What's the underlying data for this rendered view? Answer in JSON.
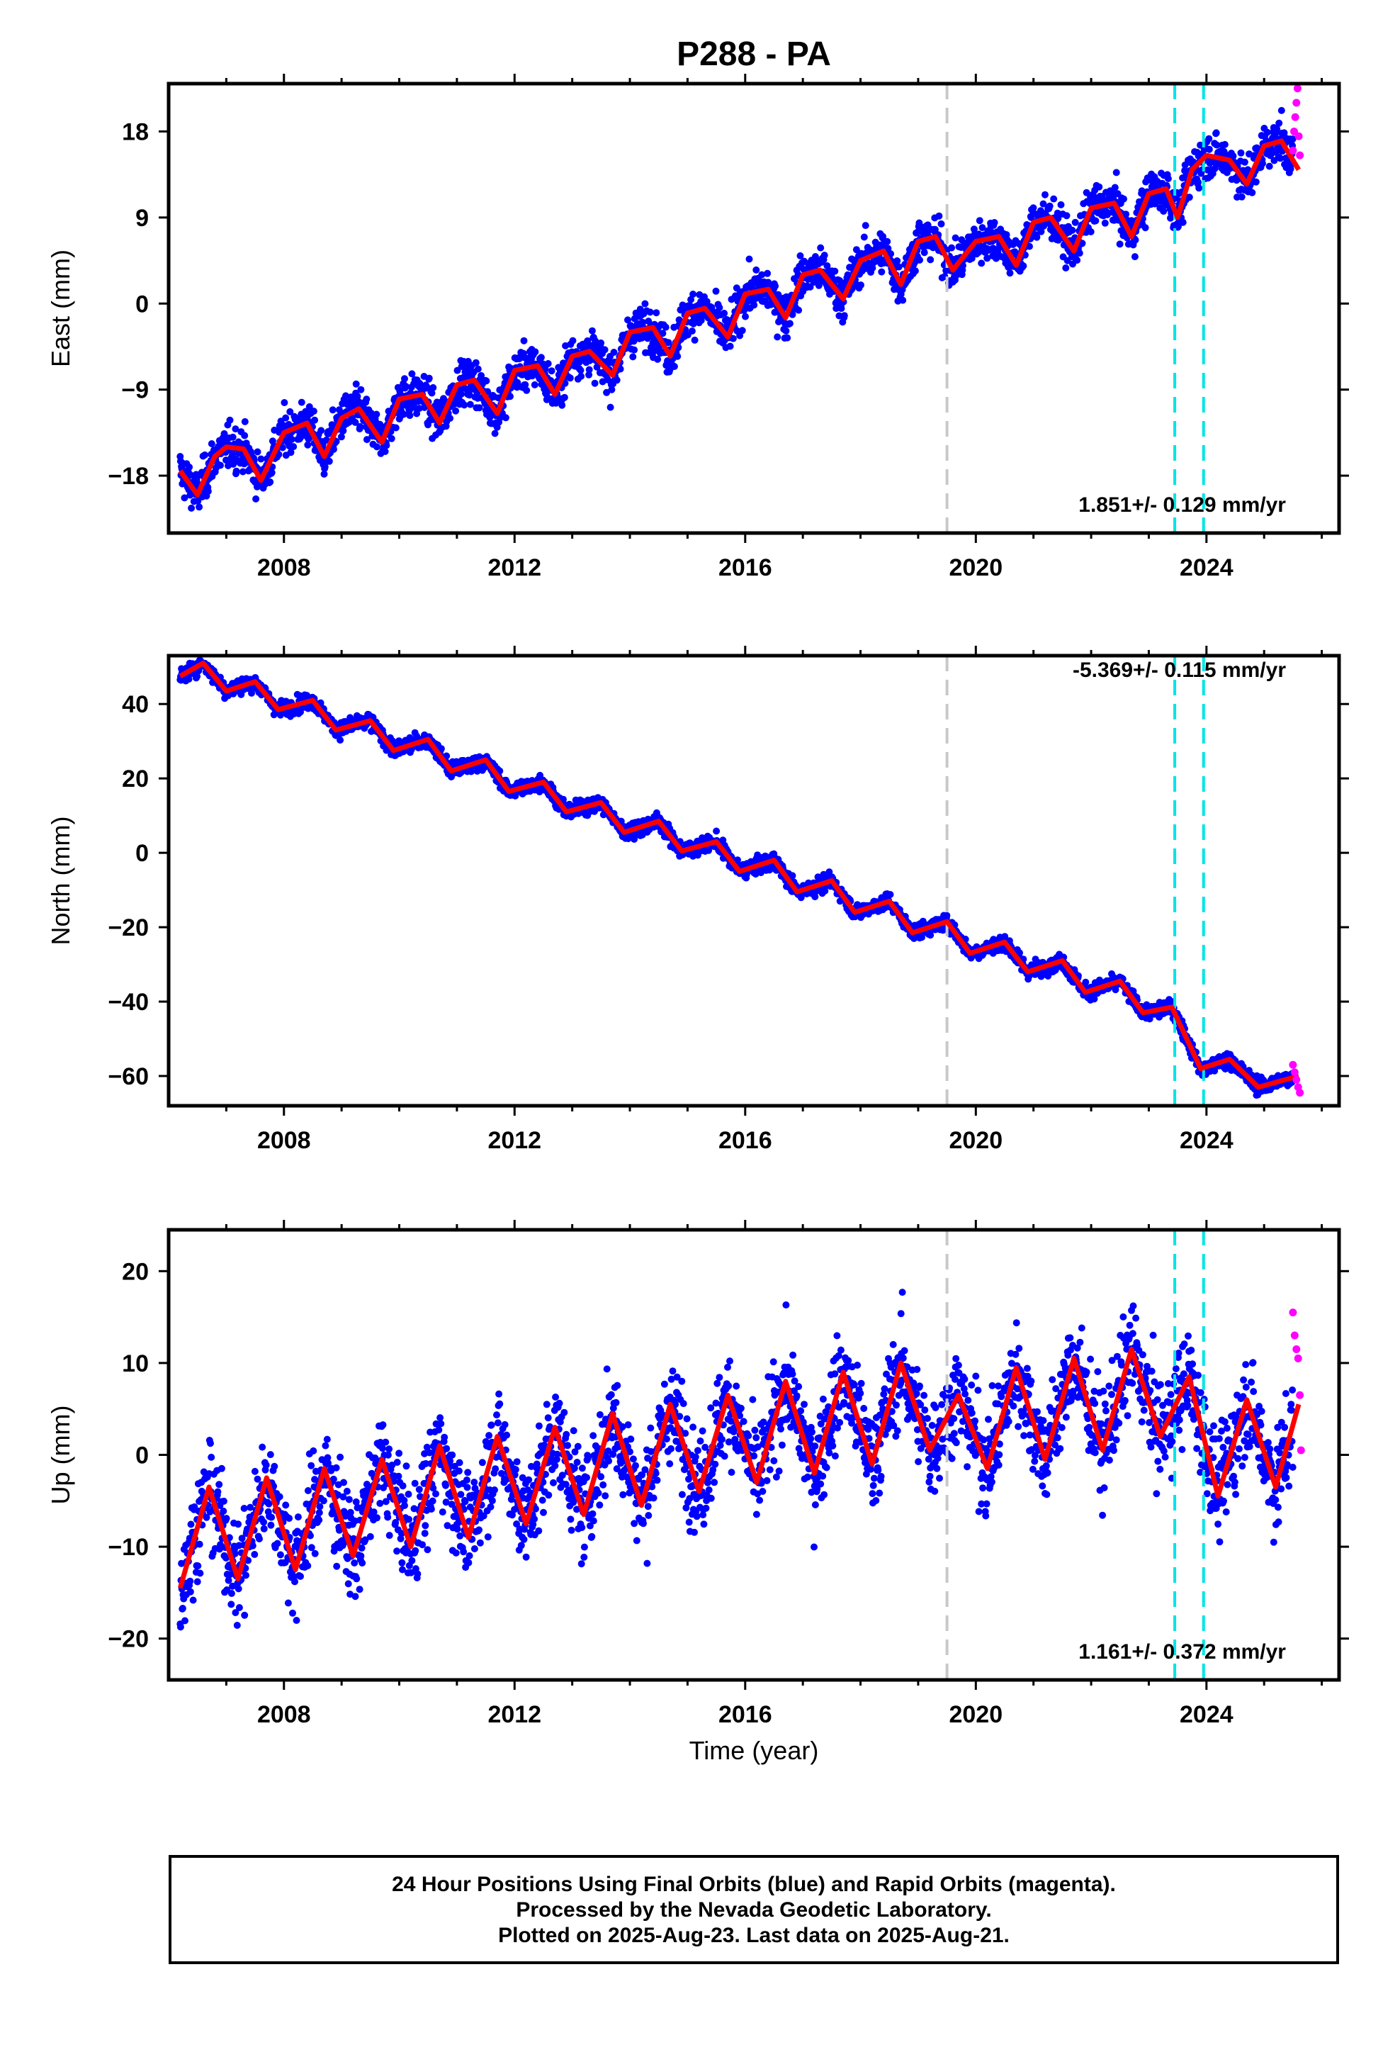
{
  "colors": {
    "final_orbits": "#0000ff",
    "rapid_orbits": "#ff00ff",
    "model_fit": "#ff0000",
    "equipment_change": "#c8c8c8",
    "event_marker": "#00e5e5"
  },
  "footer": {
    "line1": "24 Hour Positions Using Final Orbits (blue) and Rapid Orbits (magenta).",
    "line2": "Processed by the Nevada Geodetic Laboratory.",
    "line3": "Plotted on 2025-Aug-23. Last data on 2025-Aug-21."
  },
  "chart_data": [
    {
      "type": "scatter",
      "title": "P288 - PA",
      "xlabel": "",
      "ylabel": "East (mm)",
      "xlim": [
        2006.0,
        2026.3
      ],
      "ylim": [
        -24,
        23
      ],
      "x_ticks": [
        2008,
        2012,
        2016,
        2020,
        2024
      ],
      "y_ticks": [
        -18,
        -9,
        0,
        9,
        18
      ],
      "y_tick_labels": [
        "−18",
        "−9",
        "0",
        "9",
        "18"
      ],
      "rate_label": "1.851+/- 0.129 mm/yr",
      "vertical_lines": [
        {
          "x": 2019.5,
          "kind": "equipment_change"
        },
        {
          "x": 2023.45,
          "kind": "event_marker"
        },
        {
          "x": 2023.95,
          "kind": "event_marker"
        }
      ],
      "series": [
        {
          "kind": "model_fit",
          "x": [
            2006.2,
            2006.5,
            2006.8,
            2007.0,
            2007.3,
            2007.6,
            2008.0,
            2008.4,
            2008.7,
            2009.0,
            2009.3,
            2009.7,
            2010.0,
            2010.4,
            2010.7,
            2011.0,
            2011.3,
            2011.7,
            2012.0,
            2012.4,
            2012.7,
            2013.0,
            2013.3,
            2013.7,
            2014.0,
            2014.4,
            2014.7,
            2015.0,
            2015.3,
            2015.7,
            2016.0,
            2016.4,
            2016.7,
            2017.0,
            2017.3,
            2017.7,
            2018.0,
            2018.4,
            2018.7,
            2019.0,
            2019.3,
            2019.6,
            2020.0,
            2020.4,
            2020.7,
            2021.0,
            2021.3,
            2021.7,
            2022.0,
            2022.4,
            2022.7,
            2023.0,
            2023.3,
            2023.5,
            2023.75,
            2024.0,
            2024.4,
            2024.7,
            2025.0,
            2025.3,
            2025.6
          ],
          "y": [
            -17.5,
            -20.0,
            -16.0,
            -15.0,
            -15.2,
            -18.5,
            -13.5,
            -12.5,
            -16.0,
            -12.0,
            -11.0,
            -14.5,
            -10.0,
            -9.5,
            -12.5,
            -8.5,
            -8.0,
            -11.5,
            -7.0,
            -6.5,
            -9.5,
            -5.5,
            -5.0,
            -7.5,
            -3.0,
            -2.5,
            -5.5,
            -1.0,
            -0.5,
            -3.5,
            1.0,
            1.5,
            -1.5,
            3.0,
            3.5,
            0.5,
            4.5,
            5.5,
            2.0,
            6.5,
            7.0,
            3.5,
            6.5,
            7.0,
            4.0,
            8.5,
            9.0,
            5.5,
            10.0,
            10.5,
            7.0,
            11.5,
            12.0,
            9.0,
            14.0,
            15.5,
            15.0,
            12.5,
            16.5,
            17.0,
            14.0
          ]
        },
        {
          "kind": "rapid_orbits",
          "x": [
            2025.5,
            2025.52,
            2025.54,
            2025.56,
            2025.58,
            2025.6,
            2025.62
          ],
          "y": [
            16.0,
            18.0,
            19.5,
            21.0,
            22.5,
            17.5,
            15.5
          ]
        }
      ]
    },
    {
      "type": "scatter",
      "title": "",
      "xlabel": "",
      "ylabel": "North (mm)",
      "xlim": [
        2006.0,
        2026.3
      ],
      "ylim": [
        -68,
        53
      ],
      "x_ticks": [
        2008,
        2012,
        2016,
        2020,
        2024
      ],
      "y_ticks": [
        -60,
        -40,
        -20,
        0,
        20,
        40
      ],
      "y_tick_labels": [
        "−60",
        "−40",
        "−20",
        "0",
        "20",
        "40"
      ],
      "rate_label": "-5.369+/- 0.115 mm/yr",
      "vertical_lines": [
        {
          "x": 2019.5,
          "kind": "equipment_change"
        },
        {
          "x": 2023.45,
          "kind": "event_marker"
        },
        {
          "x": 2023.95,
          "kind": "event_marker"
        }
      ],
      "series": [
        {
          "kind": "model_fit",
          "x": [
            2006.2,
            2006.6,
            2007.0,
            2007.5,
            2007.9,
            2008.5,
            2008.9,
            2009.5,
            2009.9,
            2010.5,
            2010.9,
            2011.5,
            2011.9,
            2012.5,
            2012.9,
            2013.5,
            2013.9,
            2014.5,
            2014.9,
            2015.5,
            2015.9,
            2016.5,
            2016.9,
            2017.5,
            2017.9,
            2018.5,
            2018.9,
            2019.5,
            2019.9,
            2020.5,
            2020.9,
            2021.5,
            2021.9,
            2022.5,
            2022.9,
            2023.4,
            2023.9,
            2024.4,
            2024.9,
            2025.6
          ],
          "y": [
            47.5,
            51.0,
            43.5,
            46.0,
            38.5,
            41.0,
            33.0,
            35.5,
            27.5,
            30.5,
            22.0,
            25.0,
            16.5,
            19.0,
            11.0,
            13.5,
            5.5,
            8.5,
            0.5,
            3.0,
            -5.0,
            -2.0,
            -10.5,
            -7.5,
            -16.0,
            -13.0,
            -21.5,
            -18.5,
            -27.0,
            -24.0,
            -32.0,
            -29.0,
            -37.5,
            -34.5,
            -43.0,
            -41.5,
            -58.0,
            -55.5,
            -63.0,
            -60.0
          ]
        },
        {
          "kind": "rapid_orbits",
          "x": [
            2025.5,
            2025.53,
            2025.56,
            2025.59,
            2025.62
          ],
          "y": [
            -57.0,
            -59.0,
            -61.0,
            -63.0,
            -64.5
          ]
        }
      ]
    },
    {
      "type": "scatter",
      "title": "",
      "xlabel": "Time (year)",
      "ylabel": "Up (mm)",
      "xlim": [
        2006.0,
        2026.3
      ],
      "ylim": [
        -24.5,
        24.5
      ],
      "x_ticks": [
        2008,
        2012,
        2016,
        2020,
        2024
      ],
      "y_ticks": [
        -20,
        -10,
        0,
        10,
        20
      ],
      "y_tick_labels": [
        "−20",
        "−10",
        "0",
        "10",
        "20"
      ],
      "rate_label": "1.161+/- 0.372 mm/yr",
      "vertical_lines": [
        {
          "x": 2019.5,
          "kind": "equipment_change"
        },
        {
          "x": 2023.45,
          "kind": "event_marker"
        },
        {
          "x": 2023.95,
          "kind": "event_marker"
        }
      ],
      "series": [
        {
          "kind": "model_fit",
          "x": [
            2006.2,
            2006.7,
            2007.2,
            2007.7,
            2008.2,
            2008.7,
            2009.2,
            2009.7,
            2010.2,
            2010.7,
            2011.2,
            2011.7,
            2012.2,
            2012.7,
            2013.2,
            2013.7,
            2014.2,
            2014.7,
            2015.2,
            2015.7,
            2016.2,
            2016.7,
            2017.2,
            2017.7,
            2018.2,
            2018.7,
            2019.2,
            2019.7,
            2020.2,
            2020.7,
            2021.2,
            2021.7,
            2022.2,
            2022.7,
            2023.2,
            2023.7,
            2024.2,
            2024.7,
            2025.2,
            2025.6
          ],
          "y": [
            -14.5,
            -3.5,
            -13.5,
            -2.5,
            -12.5,
            -1.5,
            -11.0,
            -0.5,
            -10.0,
            1.0,
            -9.0,
            2.0,
            -7.5,
            3.0,
            -6.5,
            4.5,
            -5.5,
            5.5,
            -4.0,
            6.5,
            -3.0,
            8.0,
            -2.0,
            9.0,
            -1.0,
            10.0,
            0.5,
            6.5,
            -1.5,
            9.5,
            -0.5,
            10.5,
            0.5,
            11.5,
            2.0,
            8.5,
            -4.5,
            6.0,
            -3.5,
            5.5
          ]
        },
        {
          "kind": "rapid_orbits",
          "x": [
            2025.5,
            2025.53,
            2025.56,
            2025.59,
            2025.62,
            2025.64
          ],
          "y": [
            15.5,
            13.0,
            11.5,
            10.5,
            6.5,
            0.5
          ]
        }
      ]
    }
  ]
}
